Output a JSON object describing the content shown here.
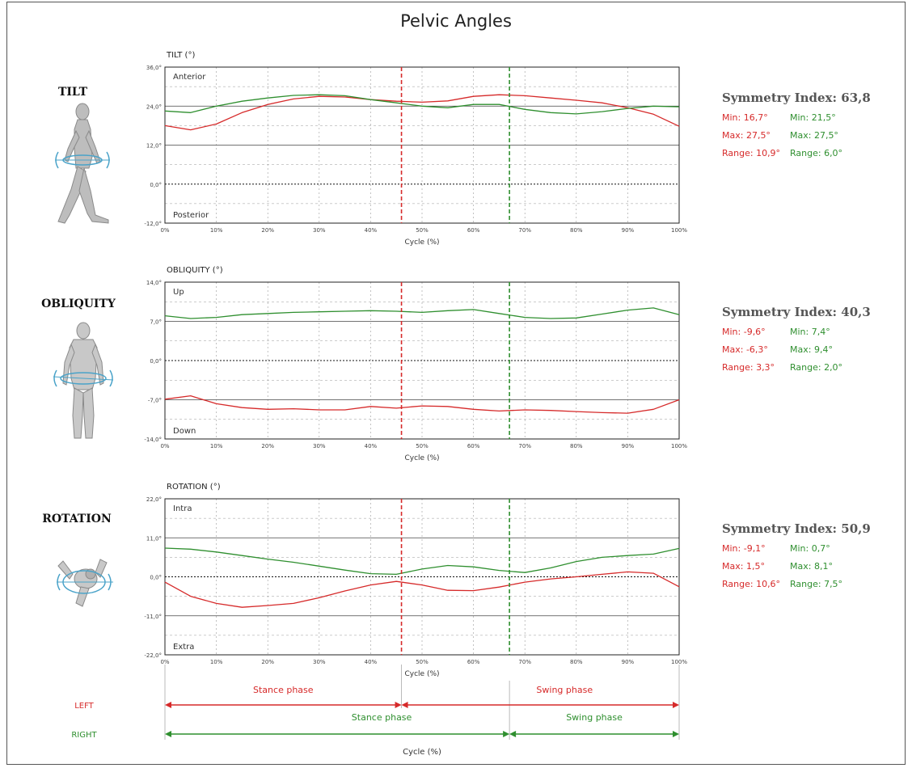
{
  "title": "Pelvic Angles",
  "colors": {
    "left": "#d62a2a",
    "right": "#2f8f2f",
    "axis": "#222222",
    "grid": "#999999"
  },
  "sections": [
    {
      "label": "TILT",
      "icon": "walking-person-side-icon",
      "symmetry": {
        "title": "Symmetry Index: 63,8",
        "left": [
          "Min: 16,7°",
          "Max: 27,5°",
          "Range: 10,9°"
        ],
        "right": [
          "Min: 21,5°",
          "Max: 27,5°",
          "Range: 6,0°"
        ]
      }
    },
    {
      "label": "OBLIQUITY",
      "icon": "standing-person-front-icon",
      "symmetry": {
        "title": "Symmetry Index: 40,3",
        "left": [
          "Min: -9,6°",
          "Max: -6,3°",
          "Range: 3,3°"
        ],
        "right": [
          "Min: 7,4°",
          "Max: 9,4°",
          "Range: 2,0°"
        ]
      }
    },
    {
      "label": "ROTATION",
      "icon": "person-top-view-icon",
      "symmetry": {
        "title": "Symmetry Index: 50,9",
        "left": [
          "Min: -9,1°",
          "Max: 1,5°",
          "Range: 10,6°"
        ],
        "right": [
          "Min: 0,7°",
          "Max: 8,1°",
          "Range: 7,5°"
        ]
      }
    }
  ],
  "chart_data": [
    {
      "type": "line",
      "title": "TILT (°)",
      "xlabel": "Cycle (%)",
      "xlim": [
        0,
        100
      ],
      "ylim": [
        -12,
        36
      ],
      "x_ticks": [
        "0%",
        "10%",
        "20%",
        "30%",
        "40%",
        "50%",
        "60%",
        "70%",
        "80%",
        "90%",
        "100%"
      ],
      "y_ticks": [
        "36,0°",
        "24,0°",
        "12,0°",
        "0,0°",
        "-12,0°"
      ],
      "region_labels": [
        "Anterior",
        "Posterior"
      ],
      "phase_lines": {
        "left": 46,
        "right": 67
      },
      "x": [
        0,
        5,
        10,
        15,
        20,
        25,
        30,
        35,
        40,
        45,
        50,
        55,
        60,
        65,
        70,
        75,
        80,
        85,
        90,
        95,
        100
      ],
      "series": [
        {
          "values": [
            18,
            16.7,
            18.5,
            22,
            24.5,
            26.2,
            27,
            26.8,
            26,
            25.5,
            25.2,
            25.6,
            27,
            27.5,
            27.2,
            26.5,
            25.8,
            25,
            23.5,
            21.5,
            17.8
          ]
        },
        {
          "values": [
            22.5,
            22,
            24,
            25.5,
            26.5,
            27.3,
            27.5,
            27.2,
            26,
            25,
            24,
            23.5,
            24.5,
            24.5,
            23,
            22,
            21.6,
            22.3,
            23.3,
            24,
            23.8
          ]
        }
      ]
    },
    {
      "type": "line",
      "title": "OBLIQUITY (°)",
      "xlabel": "Cycle (%)",
      "xlim": [
        0,
        100
      ],
      "ylim": [
        -14,
        14
      ],
      "x_ticks": [
        "0%",
        "10%",
        "20%",
        "30%",
        "40%",
        "50%",
        "60%",
        "70%",
        "80%",
        "90%",
        "100%"
      ],
      "y_ticks": [
        "14,0°",
        "7,0°",
        "0,0°",
        "-7,0°",
        "-14,0°"
      ],
      "region_labels": [
        "Up",
        "Down"
      ],
      "phase_lines": {
        "left": 46,
        "right": 67
      },
      "x": [
        0,
        5,
        10,
        15,
        20,
        25,
        30,
        35,
        40,
        45,
        50,
        55,
        60,
        65,
        70,
        75,
        80,
        85,
        90,
        95,
        100
      ],
      "series": [
        {
          "values": [
            -6.9,
            -6.3,
            -7.7,
            -8.4,
            -8.7,
            -8.6,
            -8.8,
            -8.8,
            -8.2,
            -8.5,
            -8.1,
            -8.2,
            -8.7,
            -9.0,
            -8.8,
            -8.9,
            -9.1,
            -9.3,
            -9.4,
            -8.7,
            -7.0
          ]
        },
        {
          "values": [
            8.0,
            7.5,
            7.7,
            8.2,
            8.4,
            8.6,
            8.7,
            8.8,
            8.9,
            8.8,
            8.6,
            8.9,
            9.1,
            8.4,
            7.7,
            7.5,
            7.6,
            8.3,
            9.0,
            9.4,
            8.2
          ]
        }
      ]
    },
    {
      "type": "line",
      "title": "ROTATION (°)",
      "xlabel": "Cycle (%)",
      "xlim": [
        0,
        100
      ],
      "ylim": [
        -22,
        22
      ],
      "x_ticks": [
        "0%",
        "10%",
        "20%",
        "30%",
        "40%",
        "50%",
        "60%",
        "70%",
        "80%",
        "90%",
        "100%"
      ],
      "y_ticks": [
        "22,0°",
        "11,0°",
        "0,0°",
        "-11,0°",
        "-22,0°"
      ],
      "region_labels": [
        "Intra",
        "Extra"
      ],
      "phase_lines": {
        "left": 46,
        "right": 67
      },
      "x": [
        0,
        5,
        10,
        15,
        20,
        25,
        30,
        35,
        40,
        45,
        50,
        55,
        60,
        65,
        70,
        75,
        80,
        85,
        90,
        95,
        100
      ],
      "series": [
        {
          "values": [
            -1.5,
            -5.5,
            -7.5,
            -8.6,
            -8.1,
            -7.5,
            -5.9,
            -4.0,
            -2.3,
            -1.3,
            -2.3,
            -3.8,
            -3.9,
            -2.9,
            -1.5,
            -0.6,
            0,
            0.7,
            1.4,
            1.0,
            -2.8
          ]
        },
        {
          "values": [
            8.1,
            7.8,
            7.0,
            6.0,
            5.0,
            4.1,
            3.0,
            1.9,
            0.9,
            0.7,
            2.2,
            3.2,
            2.8,
            1.8,
            1.2,
            2.5,
            4.3,
            5.5,
            6.0,
            6.4,
            8.0
          ]
        }
      ]
    }
  ],
  "phases": {
    "xlabel": "Cycle (%)",
    "left": {
      "label": "LEFT",
      "stance_label": "Stance phase",
      "swing_label": "Swing phase",
      "toe_off": 46
    },
    "right": {
      "label": "RIGHT",
      "stance_label": "Stance phase",
      "swing_label": "Swing phase",
      "toe_off": 67
    }
  }
}
